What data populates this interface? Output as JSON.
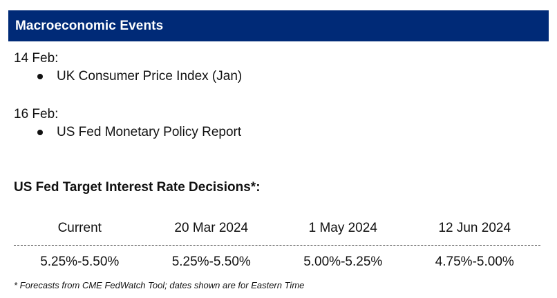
{
  "header": {
    "title": "Macroeconomic Events"
  },
  "events": [
    {
      "date": "14 Feb:",
      "item": "UK Consumer Price Index (Jan)"
    },
    {
      "date": "16 Feb:",
      "item": "US Fed Monetary Policy Report"
    }
  ],
  "rates": {
    "title": "US Fed Target Interest Rate Decisions*:",
    "columns": [
      "Current",
      "20 Mar 2024",
      "1 May 2024",
      "12 Jun 2024"
    ],
    "values": [
      "5.25%-5.50%",
      "5.25%-5.50%",
      "5.00%-5.25%",
      "4.75%-5.00%"
    ]
  },
  "footnote": "* Forecasts from CME FedWatch Tool; dates shown are for Eastern Time",
  "colors": {
    "header_bg": "#002a77",
    "header_text": "#ffffff"
  }
}
